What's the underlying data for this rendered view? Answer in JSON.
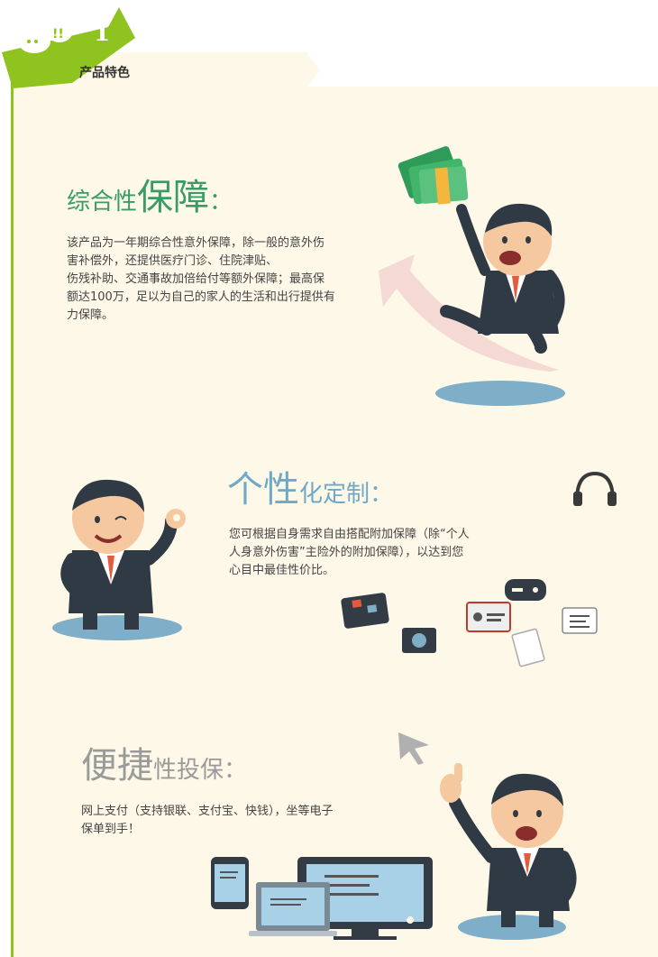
{
  "header": {
    "badge_number": "1",
    "title": "产品特色",
    "accent_color": "#8fc31f"
  },
  "sections": [
    {
      "title_small_a": "综合性",
      "title_big": "保障",
      "title_small_b": "：",
      "body_lines": [
        "该产品为一年期综合性意外保障，除一般的意外伤",
        "害补偿外，还提供医疗门诊、住院津贴、",
        "伤残补助、交通事故加倍给付等额外保障；最高保",
        "额达100万，足以为自己的家人的生活和出行提供有",
        "力保障。"
      ],
      "color": "#3a9a68"
    },
    {
      "title_big": "个性",
      "title_small_b": "化定制：",
      "body_lines": [
        "您可根据自身需求自由搭配附加保障（除“个人",
        "人身意外伤害”主险外的附加保障），以达到您",
        "心目中最佳性价比。"
      ],
      "color": "#6fa9c6"
    },
    {
      "title_big": "便捷",
      "title_small_b": "性投保：",
      "body_lines": [
        "网上支付（支持银联、支付宝、快钱），坐等电子",
        "保单到手！"
      ],
      "color": "#9a9a9a"
    }
  ],
  "icons": [
    "money-icon",
    "headphones-icon",
    "suitcase-icon",
    "camera-icon",
    "gamepad-icon",
    "id-card-icon",
    "chat-icon",
    "document-icon",
    "cursor-icon",
    "phone-icon",
    "laptop-icon",
    "monitor-icon"
  ]
}
